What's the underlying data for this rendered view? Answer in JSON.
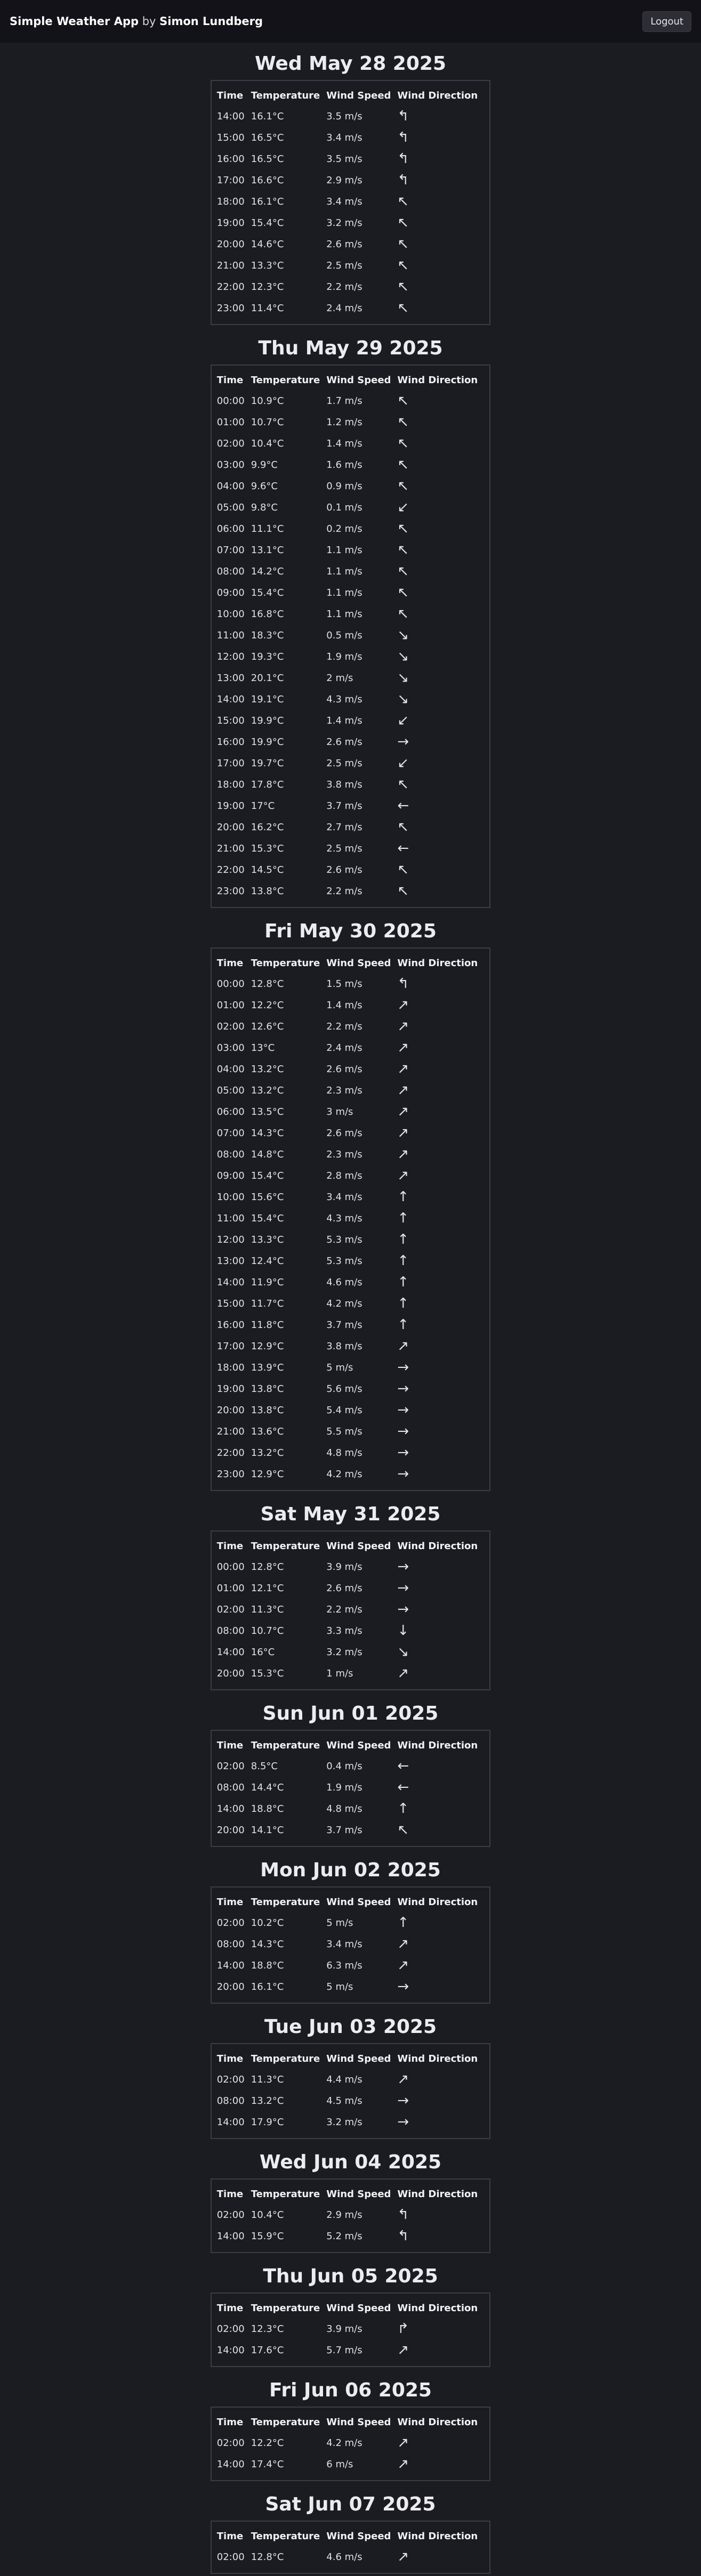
{
  "header": {
    "app_name": "Simple Weather App",
    "by": " by ",
    "author": "Simon Lundberg",
    "logout_label": "Logout"
  },
  "table_headers": [
    "Time",
    "Temperature",
    "Wind Speed",
    "Wind Direction"
  ],
  "days": [
    {
      "title": "Wed May 28 2025",
      "rows": [
        [
          "14:00",
          "16.1°C",
          "3.5 m/s",
          "↰"
        ],
        [
          "15:00",
          "16.5°C",
          "3.4 m/s",
          "↰"
        ],
        [
          "16:00",
          "16.5°C",
          "3.5 m/s",
          "↰"
        ],
        [
          "17:00",
          "16.6°C",
          "2.9 m/s",
          "↰"
        ],
        [
          "18:00",
          "16.1°C",
          "3.4 m/s",
          "↖"
        ],
        [
          "19:00",
          "15.4°C",
          "3.2 m/s",
          "↖"
        ],
        [
          "20:00",
          "14.6°C",
          "2.6 m/s",
          "↖"
        ],
        [
          "21:00",
          "13.3°C",
          "2.5 m/s",
          "↖"
        ],
        [
          "22:00",
          "12.3°C",
          "2.2 m/s",
          "↖"
        ],
        [
          "23:00",
          "11.4°C",
          "2.4 m/s",
          "↖"
        ]
      ]
    },
    {
      "title": "Thu May 29 2025",
      "rows": [
        [
          "00:00",
          "10.9°C",
          "1.7 m/s",
          "↖"
        ],
        [
          "01:00",
          "10.7°C",
          "1.2 m/s",
          "↖"
        ],
        [
          "02:00",
          "10.4°C",
          "1.4 m/s",
          "↖"
        ],
        [
          "03:00",
          "9.9°C",
          "1.6 m/s",
          "↖"
        ],
        [
          "04:00",
          "9.6°C",
          "0.9 m/s",
          "↖"
        ],
        [
          "05:00",
          "9.8°C",
          "0.1 m/s",
          "↙"
        ],
        [
          "06:00",
          "11.1°C",
          "0.2 m/s",
          "↖"
        ],
        [
          "07:00",
          "13.1°C",
          "1.1 m/s",
          "↖"
        ],
        [
          "08:00",
          "14.2°C",
          "1.1 m/s",
          "↖"
        ],
        [
          "09:00",
          "15.4°C",
          "1.1 m/s",
          "↖"
        ],
        [
          "10:00",
          "16.8°C",
          "1.1 m/s",
          "↖"
        ],
        [
          "11:00",
          "18.3°C",
          "0.5 m/s",
          "↘"
        ],
        [
          "12:00",
          "19.3°C",
          "1.9 m/s",
          "↘"
        ],
        [
          "13:00",
          "20.1°C",
          "2 m/s",
          "↘"
        ],
        [
          "14:00",
          "19.1°C",
          "4.3 m/s",
          "↘"
        ],
        [
          "15:00",
          "19.9°C",
          "1.4 m/s",
          "↙"
        ],
        [
          "16:00",
          "19.9°C",
          "2.6 m/s",
          "→"
        ],
        [
          "17:00",
          "19.7°C",
          "2.5 m/s",
          "↙"
        ],
        [
          "18:00",
          "17.8°C",
          "3.8 m/s",
          "↖"
        ],
        [
          "19:00",
          "17°C",
          "3.7 m/s",
          "←"
        ],
        [
          "20:00",
          "16.2°C",
          "2.7 m/s",
          "↖"
        ],
        [
          "21:00",
          "15.3°C",
          "2.5 m/s",
          "←"
        ],
        [
          "22:00",
          "14.5°C",
          "2.6 m/s",
          "↖"
        ],
        [
          "23:00",
          "13.8°C",
          "2.2 m/s",
          "↖"
        ]
      ]
    },
    {
      "title": "Fri May 30 2025",
      "rows": [
        [
          "00:00",
          "12.8°C",
          "1.5 m/s",
          "↰"
        ],
        [
          "01:00",
          "12.2°C",
          "1.4 m/s",
          "↗"
        ],
        [
          "02:00",
          "12.6°C",
          "2.2 m/s",
          "↗"
        ],
        [
          "03:00",
          "13°C",
          "2.4 m/s",
          "↗"
        ],
        [
          "04:00",
          "13.2°C",
          "2.6 m/s",
          "↗"
        ],
        [
          "05:00",
          "13.2°C",
          "2.3 m/s",
          "↗"
        ],
        [
          "06:00",
          "13.5°C",
          "3 m/s",
          "↗"
        ],
        [
          "07:00",
          "14.3°C",
          "2.6 m/s",
          "↗"
        ],
        [
          "08:00",
          "14.8°C",
          "2.3 m/s",
          "↗"
        ],
        [
          "09:00",
          "15.4°C",
          "2.8 m/s",
          "↗"
        ],
        [
          "10:00",
          "15.6°C",
          "3.4 m/s",
          "↑"
        ],
        [
          "11:00",
          "15.4°C",
          "4.3 m/s",
          "↑"
        ],
        [
          "12:00",
          "13.3°C",
          "5.3 m/s",
          "↑"
        ],
        [
          "13:00",
          "12.4°C",
          "5.3 m/s",
          "↑"
        ],
        [
          "14:00",
          "11.9°C",
          "4.6 m/s",
          "↑"
        ],
        [
          "15:00",
          "11.7°C",
          "4.2 m/s",
          "↑"
        ],
        [
          "16:00",
          "11.8°C",
          "3.7 m/s",
          "↑"
        ],
        [
          "17:00",
          "12.9°C",
          "3.8 m/s",
          "↗"
        ],
        [
          "18:00",
          "13.9°C",
          "5 m/s",
          "→"
        ],
        [
          "19:00",
          "13.8°C",
          "5.6 m/s",
          "→"
        ],
        [
          "20:00",
          "13.8°C",
          "5.4 m/s",
          "→"
        ],
        [
          "21:00",
          "13.6°C",
          "5.5 m/s",
          "→"
        ],
        [
          "22:00",
          "13.2°C",
          "4.8 m/s",
          "→"
        ],
        [
          "23:00",
          "12.9°C",
          "4.2 m/s",
          "→"
        ]
      ]
    },
    {
      "title": "Sat May 31 2025",
      "rows": [
        [
          "00:00",
          "12.8°C",
          "3.9 m/s",
          "→"
        ],
        [
          "01:00",
          "12.1°C",
          "2.6 m/s",
          "→"
        ],
        [
          "02:00",
          "11.3°C",
          "2.2 m/s",
          "→"
        ],
        [
          "08:00",
          "10.7°C",
          "3.3 m/s",
          "↓"
        ],
        [
          "14:00",
          "16°C",
          "3.2 m/s",
          "↘"
        ],
        [
          "20:00",
          "15.3°C",
          "1 m/s",
          "↗"
        ]
      ]
    },
    {
      "title": "Sun Jun 01 2025",
      "rows": [
        [
          "02:00",
          "8.5°C",
          "0.4 m/s",
          "←"
        ],
        [
          "08:00",
          "14.4°C",
          "1.9 m/s",
          "←"
        ],
        [
          "14:00",
          "18.8°C",
          "4.8 m/s",
          "↑"
        ],
        [
          "20:00",
          "14.1°C",
          "3.7 m/s",
          "↖"
        ]
      ]
    },
    {
      "title": "Mon Jun 02 2025",
      "rows": [
        [
          "02:00",
          "10.2°C",
          "5 m/s",
          "↑"
        ],
        [
          "08:00",
          "14.3°C",
          "3.4 m/s",
          "↗"
        ],
        [
          "14:00",
          "18.8°C",
          "6.3 m/s",
          "↗"
        ],
        [
          "20:00",
          "16.1°C",
          "5 m/s",
          "→"
        ]
      ]
    },
    {
      "title": "Tue Jun 03 2025",
      "rows": [
        [
          "02:00",
          "11.3°C",
          "4.4 m/s",
          "↗"
        ],
        [
          "08:00",
          "13.2°C",
          "4.5 m/s",
          "→"
        ],
        [
          "14:00",
          "17.9°C",
          "3.2 m/s",
          "→"
        ]
      ]
    },
    {
      "title": "Wed Jun 04 2025",
      "rows": [
        [
          "02:00",
          "10.4°C",
          "2.9 m/s",
          "↰"
        ],
        [
          "14:00",
          "15.9°C",
          "5.2 m/s",
          "↰"
        ]
      ]
    },
    {
      "title": "Thu Jun 05 2025",
      "rows": [
        [
          "02:00",
          "12.3°C",
          "3.9 m/s",
          "↱"
        ],
        [
          "14:00",
          "17.6°C",
          "5.7 m/s",
          "↗"
        ]
      ]
    },
    {
      "title": "Fri Jun 06 2025",
      "rows": [
        [
          "02:00",
          "12.2°C",
          "4.2 m/s",
          "↗"
        ],
        [
          "14:00",
          "17.4°C",
          "6 m/s",
          "↗"
        ]
      ]
    },
    {
      "title": "Sat Jun 07 2025",
      "rows": [
        [
          "02:00",
          "12.8°C",
          "4.6 m/s",
          "↗"
        ]
      ]
    }
  ]
}
